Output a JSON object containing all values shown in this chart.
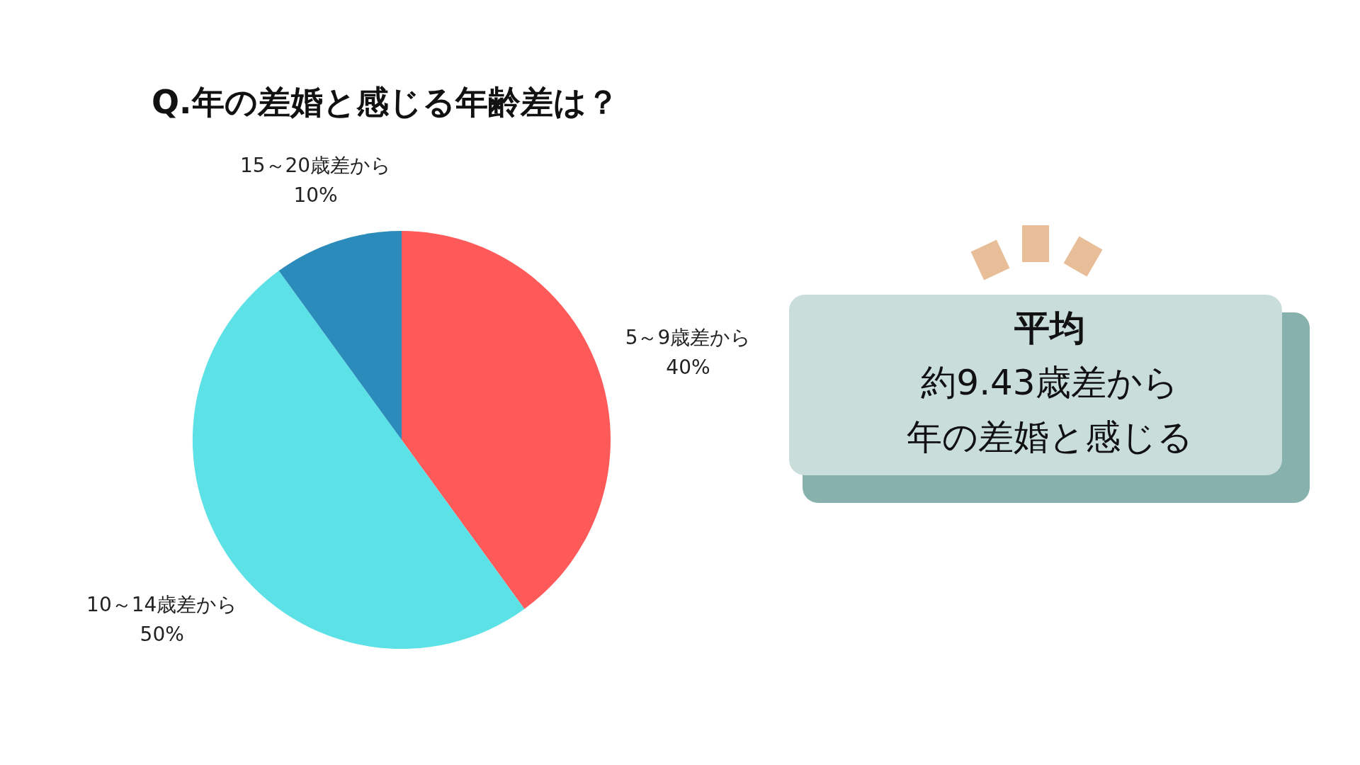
{
  "chart_data": {
    "type": "pie",
    "title": "Q.年の差婚と感じる年齢差は？",
    "categories": [
      "5～9歳差から",
      "10～14歳差から",
      "15～20歳差から"
    ],
    "values": [
      40,
      50,
      10
    ],
    "colors": [
      "#ff5a5a",
      "#5ce1e6",
      "#2b8bba"
    ],
    "value_labels": [
      "40%",
      "50%",
      "10%"
    ],
    "annotations": [
      "平均",
      "約9.43歳差から",
      "年の差婚と感じる"
    ]
  }
}
